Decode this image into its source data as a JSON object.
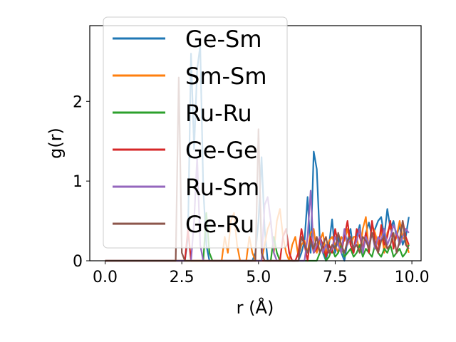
{
  "chart_data": {
    "type": "line",
    "title": "",
    "xlabel": "r (Å)",
    "ylabel": "g(r)",
    "xlim": [
      -0.5,
      10.3
    ],
    "ylim": [
      0,
      2.95
    ],
    "xticks": [
      0.0,
      2.5,
      5.0,
      7.5,
      10.0
    ],
    "xtick_labels": [
      "0.0",
      "2.5",
      "5.0",
      "7.5",
      "10.0"
    ],
    "yticks": [
      0,
      1,
      2
    ],
    "ytick_labels": [
      "0",
      "1",
      "2"
    ],
    "grid": false,
    "legend_position": "top-left",
    "x": [
      0.0,
      0.1,
      0.2,
      0.3,
      0.4,
      0.5,
      0.6,
      0.7,
      0.8,
      0.9,
      1.0,
      1.1,
      1.2,
      1.3,
      1.4,
      1.5,
      1.6,
      1.7,
      1.8,
      1.9,
      2.0,
      2.1,
      2.2,
      2.3,
      2.4,
      2.5,
      2.6,
      2.7,
      2.8,
      2.9,
      3.0,
      3.1,
      3.2,
      3.3,
      3.4,
      3.5,
      3.6,
      3.7,
      3.8,
      3.9,
      4.0,
      4.1,
      4.2,
      4.3,
      4.4,
      4.5,
      4.6,
      4.7,
      4.8,
      4.9,
      5.0,
      5.1,
      5.2,
      5.3,
      5.4,
      5.5,
      5.6,
      5.7,
      5.8,
      5.9,
      6.0,
      6.1,
      6.2,
      6.3,
      6.4,
      6.5,
      6.6,
      6.7,
      6.8,
      6.9,
      7.0,
      7.1,
      7.2,
      7.3,
      7.4,
      7.5,
      7.6,
      7.7,
      7.8,
      7.9,
      8.0,
      8.1,
      8.2,
      8.3,
      8.4,
      8.5,
      8.6,
      8.7,
      8.8,
      8.9,
      9.0,
      9.1,
      9.2,
      9.3,
      9.4,
      9.5,
      9.6,
      9.7,
      9.8,
      9.9
    ],
    "series": [
      {
        "name": "Ge-Sm",
        "color": "#1f77b4",
        "values": [
          0,
          0,
          0,
          0,
          0,
          0,
          0,
          0,
          0,
          0,
          0,
          0,
          0,
          0,
          0,
          0,
          0,
          0,
          0,
          0,
          0,
          0,
          0,
          0,
          0,
          0,
          0,
          0.3,
          2.6,
          1.4,
          2.4,
          2.7,
          0.9,
          0.2,
          0,
          0,
          0,
          0,
          0,
          0,
          0,
          0,
          0,
          0,
          0,
          0,
          0,
          0,
          0,
          0.1,
          0.5,
          1.3,
          0.4,
          0,
          0,
          0,
          0,
          0,
          0,
          0,
          0,
          0,
          0,
          0,
          0.1,
          0.25,
          0.8,
          0.1,
          1.37,
          1.15,
          0.25,
          0.1,
          0,
          0.2,
          0.52,
          0.1,
          0.3,
          0.1,
          0,
          0.25,
          0.4,
          0.1,
          0.3,
          0.45,
          0.1,
          0.35,
          0.48,
          0.3,
          0.4,
          0.5,
          0.55,
          0.3,
          0.65,
          0.4,
          0.5,
          0.3,
          0.45,
          0.2,
          0.3,
          0.55
        ]
      },
      {
        "name": "Sm-Sm",
        "color": "#ff7f0e",
        "values": [
          0,
          0,
          0,
          0,
          0,
          0,
          0,
          0,
          0,
          0,
          0,
          0,
          0,
          0,
          0,
          0,
          0,
          0,
          0,
          0,
          0,
          0,
          0,
          0,
          0,
          0,
          0,
          0,
          0,
          0,
          0,
          0,
          0,
          0,
          0,
          0,
          0,
          0,
          0,
          0.3,
          0.1,
          0.5,
          0.6,
          0.2,
          0,
          0,
          0,
          0.3,
          0.1,
          0,
          0,
          0,
          0.2,
          0.4,
          0.5,
          0.1,
          0.5,
          0.65,
          0.3,
          0.1,
          0,
          0.2,
          0.3,
          0.05,
          0.2,
          0.25,
          0.1,
          0.35,
          0.4,
          0.1,
          0.25,
          0.35,
          0.1,
          0.25,
          0.3,
          0.2,
          0.1,
          0.3,
          0.25,
          0.4,
          0.2,
          0.3,
          0.3,
          0.1,
          0.4,
          0.55,
          0.1,
          0.45,
          0.35,
          0.2,
          0.4,
          0.1,
          0.35,
          0.45,
          0.2,
          0.3,
          0.5,
          0.3,
          0.25,
          0.1
        ]
      },
      {
        "name": "Ru-Ru",
        "color": "#2ca02c",
        "values": [
          0,
          0,
          0,
          0,
          0,
          0,
          0,
          0,
          0,
          0,
          0,
          0,
          0,
          0,
          0,
          0,
          0,
          0,
          0,
          0,
          0,
          0,
          0,
          0,
          0,
          0,
          0,
          0,
          0,
          0,
          0,
          0,
          0,
          0.6,
          0.1,
          0,
          0,
          0,
          0,
          0,
          0,
          0,
          0,
          0,
          0,
          0,
          0,
          0,
          0,
          0,
          0,
          0,
          0,
          0,
          0,
          0.3,
          0.1,
          0,
          0,
          0,
          0,
          0,
          0,
          0,
          0,
          0,
          0,
          0,
          0,
          0,
          0.1,
          0.2,
          0,
          0.05,
          0.15,
          0.05,
          0.1,
          0.2,
          0.05,
          0.1,
          0.15,
          0.05,
          0.1,
          0.2,
          0.05,
          0.15,
          0.1,
          0.05,
          0.2,
          0.1,
          0.05,
          0.15,
          0.1,
          0.2,
          0.05,
          0.1,
          0.15,
          0.05,
          0.1,
          0.2
        ]
      },
      {
        "name": "Ge-Ge",
        "color": "#d62728",
        "values": [
          0,
          0,
          0,
          0,
          0,
          0,
          0,
          0,
          0,
          0,
          0,
          0,
          0,
          0,
          0,
          0,
          0,
          0,
          0,
          0,
          0,
          0,
          0,
          0,
          0,
          0,
          0,
          0.4,
          0,
          0,
          0,
          0,
          0,
          0,
          0,
          0,
          0,
          0,
          0,
          0,
          0,
          0,
          0,
          0,
          0,
          0,
          0,
          0,
          0,
          0,
          0,
          0,
          0,
          0,
          0,
          0,
          0,
          0,
          0.3,
          0.4,
          0.1,
          0,
          0,
          0.1,
          0.4,
          0.2,
          0,
          0.3,
          0.1,
          0.15,
          0.3,
          0.2,
          0.05,
          0.2,
          0.1,
          0.4,
          0.2,
          0.1,
          0.3,
          0.5,
          0.2,
          0.1,
          0.4,
          0.3,
          0.15,
          0.35,
          0.1,
          0.5,
          0.25,
          0.1,
          0.45,
          0.2,
          0.3,
          0.5,
          0.15,
          0.35,
          0.25,
          0.5,
          0.3,
          0.2
        ]
      },
      {
        "name": "Ru-Sm",
        "color": "#9467bd",
        "values": [
          0,
          0,
          0,
          0,
          0,
          0,
          0,
          0,
          0,
          0,
          0,
          0,
          0,
          0,
          0,
          0,
          0,
          0,
          0,
          0,
          0,
          0,
          0,
          0,
          0,
          0,
          0,
          0,
          0,
          0.5,
          1.3,
          0.2,
          0,
          0,
          0,
          0,
          0,
          0,
          0,
          0,
          0,
          0,
          0,
          0,
          0,
          0,
          0,
          0,
          0,
          0,
          0,
          0,
          0.7,
          0.8,
          0.5,
          0.1,
          0,
          0,
          0,
          0,
          0,
          0,
          0,
          0,
          0,
          0,
          0.3,
          0.88,
          0.1,
          0.2,
          0.3,
          0.1,
          0.2,
          0.1,
          0.15,
          0.3,
          0.2,
          0.1,
          0.4,
          0.2,
          0.3,
          0.15,
          0.25,
          0.4,
          0.1,
          0.3,
          0.2,
          0.35,
          0.15,
          0.3,
          0.25,
          0.4,
          0.2,
          0.3,
          0.45,
          0.35,
          0.2,
          0.3,
          0.4,
          0.35
        ]
      },
      {
        "name": "Ge-Ru",
        "color": "#8c564b",
        "values": [
          0,
          0,
          0,
          0,
          0,
          0,
          0,
          0,
          0,
          0,
          0,
          0,
          0,
          0,
          0,
          0,
          0,
          0,
          0,
          0,
          0,
          0,
          0,
          0,
          2.3,
          0.1,
          0,
          0,
          0,
          0,
          0,
          0,
          0,
          0,
          0,
          0,
          0,
          0,
          0,
          0,
          0,
          0,
          0,
          0,
          0,
          0,
          0,
          0,
          0,
          0,
          1.65,
          0.1,
          0,
          0,
          0,
          0,
          0,
          0,
          0,
          0,
          0,
          0,
          0,
          0,
          0.3,
          0.2,
          0.1,
          0.25,
          0.15,
          0.3,
          0.1,
          0.2,
          0.3,
          0.1,
          0.2,
          0.15,
          0.35,
          0.2,
          0.1,
          0.25,
          0.3,
          0.15,
          0.2,
          0.1,
          0.3,
          0.25,
          0.15,
          0.35,
          0.2,
          0.1,
          0.25,
          0.3,
          0.15,
          0.2,
          0.35,
          0.1,
          0.25,
          0.5,
          0.2,
          0.15
        ]
      }
    ]
  }
}
